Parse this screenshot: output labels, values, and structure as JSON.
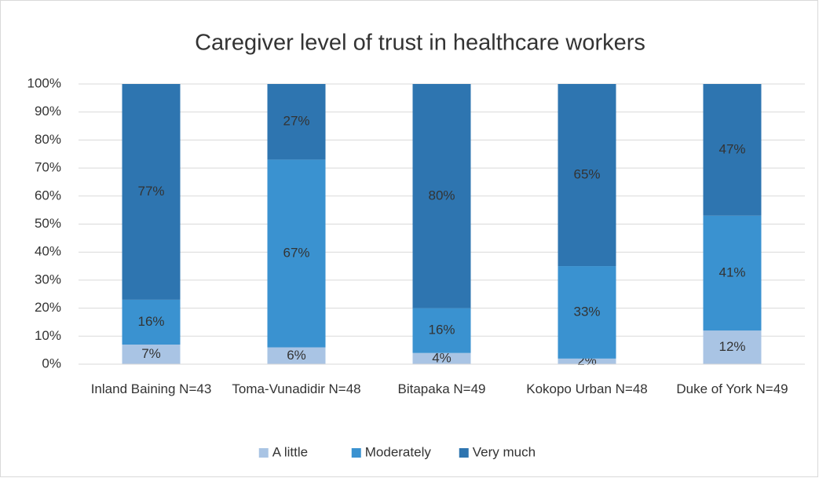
{
  "chart_data": {
    "type": "stacked_bar",
    "title": "Caregiver level of trust in healthcare workers",
    "categories": [
      "Inland Baining N=43",
      "Toma-Vunadidir N=48",
      "Bitapaka N=49",
      "Kokopo Urban N=48",
      "Duke of York N=49"
    ],
    "series": [
      {
        "name": "A little",
        "color": "#a9c4e4",
        "values": [
          7,
          6,
          4,
          2,
          12
        ],
        "value_labels": [
          "7%",
          "6%",
          "4%",
          "2%",
          "12%"
        ]
      },
      {
        "name": "Moderately",
        "color": "#3a92d0",
        "values": [
          16,
          67,
          16,
          33,
          41
        ],
        "value_labels": [
          "16%",
          "67%",
          "16%",
          "33%",
          "41%"
        ]
      },
      {
        "name": "Very much",
        "color": "#2e75b0",
        "values": [
          77,
          27,
          80,
          65,
          47
        ],
        "value_labels": [
          "77%",
          "27%",
          "80%",
          "65%",
          "47%"
        ]
      }
    ],
    "ylim": [
      0,
      100
    ],
    "yticks": [
      {
        "value": 0,
        "label": "0%"
      },
      {
        "value": 10,
        "label": "10%"
      },
      {
        "value": 20,
        "label": "20%"
      },
      {
        "value": 30,
        "label": "30%"
      },
      {
        "value": 40,
        "label": "40%"
      },
      {
        "value": 50,
        "label": "50%"
      },
      {
        "value": 60,
        "label": "60%"
      },
      {
        "value": 70,
        "label": "70%"
      },
      {
        "value": 80,
        "label": "80%"
      },
      {
        "value": 90,
        "label": "90%"
      },
      {
        "value": 100,
        "label": "100%"
      }
    ],
    "grid": true,
    "legend": "bottom"
  }
}
